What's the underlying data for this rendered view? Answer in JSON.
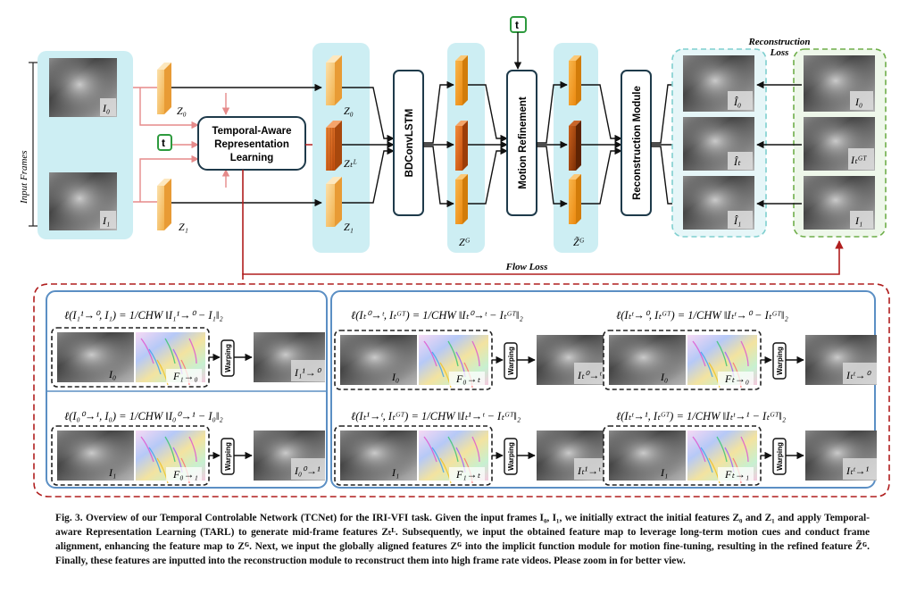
{
  "input_frames_label": "Input Frames",
  "frames": {
    "i0": "I₀",
    "i1": "I₁",
    "z0": "Z₀",
    "z1": "Z₁",
    "ztl": "Zₜᴸ",
    "zg": "Zᴳ",
    "zg_tilde": "Z̃ᴳ"
  },
  "t_token": "t",
  "modules": {
    "tarl_line1": "Temporal-Aware",
    "tarl_line2": "Representation",
    "tarl_line3": "Learning",
    "bdconv": "BDConvLSTM",
    "motion": "Motion Refinement",
    "recon": "Reconstruction Module"
  },
  "outputs": {
    "pred0": "Î₀",
    "predt": "Îₜ",
    "pred1": "Î₁",
    "gt0": "I₀",
    "gtt": "Iₜᴳᵀ",
    "gt1": "I₁"
  },
  "loss_labels": {
    "recon_line1": "Reconstruction",
    "recon_line2": "Loss",
    "flow": "Flow Loss"
  },
  "flow_panels": [
    {
      "formula": "ℓ(I₁¹→⁰, I₁) = 1/CHW ‖I₁¹→⁰ − I₁‖₂",
      "img": "I₀",
      "flow": "F₁→₀",
      "warp": "Warping",
      "out": "I₁¹→⁰"
    },
    {
      "formula": "ℓ(I₀⁰→¹, I₀) = 1/CHW ‖I₀⁰→¹ − I₀‖₂",
      "img": "I₁",
      "flow": "F₀→₁",
      "warp": "Warping",
      "out": "I₀⁰→¹"
    },
    {
      "formula": "ℓ(Iₜ⁰→ᵗ, Iₜᴳᵀ) = 1/CHW ‖Iₜ⁰→ᵗ − Iₜᴳᵀ‖₂",
      "img": "I₀",
      "flow": "F₀→ₜ",
      "warp": "Warping",
      "out": "Iₜ⁰→ᵗ"
    },
    {
      "formula": "ℓ(Iₜᵗ→⁰, Iₜᴳᵀ) = 1/CHW ‖Iₜᵗ→⁰ − Iₜᴳᵀ‖₂",
      "img": "I₀",
      "flow": "Fₜ→₀",
      "warp": "Warping",
      "out": "Iₜᵗ→⁰"
    },
    {
      "formula": "ℓ(Iₜ¹→ᵗ, Iₜᴳᵀ) = 1/CHW ‖Iₜ¹→ᵗ − Iₜᴳᵀ‖₂",
      "img": "I₁",
      "flow": "F₁→ₜ",
      "warp": "Warping",
      "out": "Iₜ¹→ᵗ"
    },
    {
      "formula": "ℓ(Iₜᵗ→¹, Iₜᴳᵀ) = 1/CHW ‖Iₜᵗ→¹ − Iₜᴳᵀ‖₂",
      "img": "I₁",
      "flow": "Fₜ→₁",
      "warp": "Warping",
      "out": "Iₜᵗ→¹"
    }
  ],
  "caption": "Fig. 3. Overview of our Temporal Controlable Network (TCNet) for the IRI-VFI task. Given the input frames I₀, I₁, we initially extract the initial features Z₀ and Z₁ and apply Temporal-aware Representation Learning (TARL) to generate mid-frame features Zₜᴸ. Subsequently, we input the obtained feature map to leverage long-term motion cues and conduct frame alignment, enhancing the feature map to Zᴳ. Next, we input the globally aligned features Zᴳ into the implicit function module for motion fine-tuning, resulting in the refined feature Z̃ᴳ. Finally, these features are inputted into the reconstruction module to reconstruct them into high frame rate videos. Please zoom in for better view.",
  "colors": {
    "cyan_panel": "#cdeef3",
    "red": "#b01e1e",
    "blue_border": "#5b8fc4",
    "green": "#2e9a3e",
    "orange": "#f29b1b",
    "dark_orange": "#a8480d"
  }
}
